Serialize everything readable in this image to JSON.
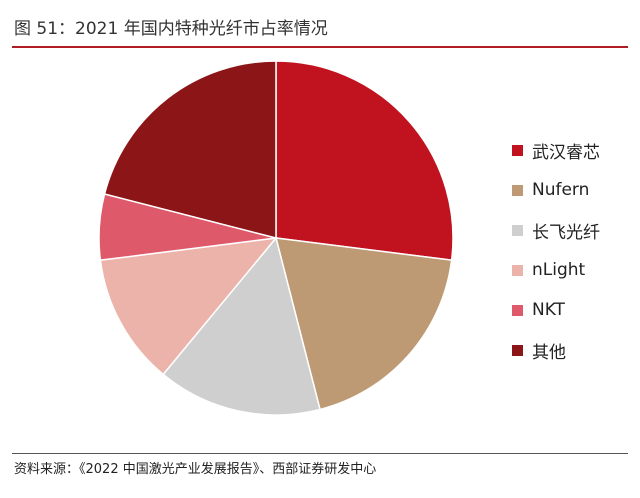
{
  "header": {
    "title": "图 51：2021 年国内特种光纤市占率情况"
  },
  "footer": {
    "source": "资料来源：《2022 中国激光产业发展报告》、西部证券研发中心"
  },
  "chart_data": {
    "type": "pie",
    "title": "",
    "legend": "right",
    "slices": [
      {
        "label": "武汉睿芯",
        "value": 27,
        "color": "#c0121f"
      },
      {
        "label": "Nufern",
        "value": 19,
        "color": "#bd9a73"
      },
      {
        "label": "长飞光纤",
        "value": 15,
        "color": "#cfcfcf"
      },
      {
        "label": "nLight",
        "value": 12,
        "color": "#ebb3a9"
      },
      {
        "label": "NKT",
        "value": 6,
        "color": "#de5a6b"
      },
      {
        "label": "其他",
        "value": 21,
        "color": "#8b1517"
      }
    ]
  }
}
